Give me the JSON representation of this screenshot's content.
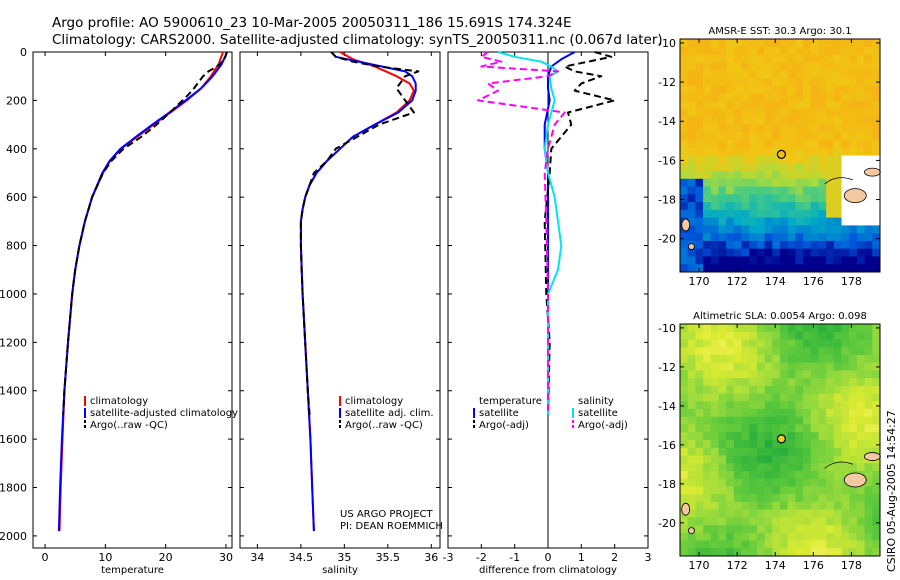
{
  "header": {
    "line1": "Argo profile: AO 5900610_23 10-Mar-2005 20050311_186 15.691S 174.324E",
    "line2": "Climatology: CARS2000. Satellite-adjusted climatology: synTS_20050311.nc (0.067d later)"
  },
  "side_stamp": "CSIRO 05-Aug-2005 14:54:27",
  "colors": {
    "climatology": "#ff0000",
    "satellite": "#0000ff",
    "argo": "#000000",
    "salinity_satellite": "#00e5ee",
    "salinity_argo": "#ff00ff",
    "land": "#f4c8a0"
  },
  "chart_data": [
    {
      "type": "line",
      "xlabel": "temperature",
      "ylabel": "",
      "xlim": [
        -2,
        31
      ],
      "ylim": [
        2050,
        0
      ],
      "xticks": [
        0,
        10,
        20,
        30
      ],
      "yticks": [
        0,
        200,
        400,
        600,
        800,
        1000,
        1200,
        1400,
        1600,
        1800,
        2000
      ],
      "legend": [
        "climatology",
        "satellite-adjusted climatology",
        "Argo(..raw -QC)"
      ],
      "series": [
        {
          "name": "climatology",
          "style": "solid",
          "color": "#ff0000",
          "depth": [
            0,
            50,
            100,
            150,
            200,
            250,
            300,
            350,
            400,
            450,
            500,
            600,
            700,
            800,
            900,
            1000,
            1200,
            1400,
            1600,
            1800,
            1980
          ],
          "values": [
            29.5,
            28.8,
            27.5,
            25.9,
            23.5,
            20.8,
            18.0,
            15.3,
            12.6,
            10.8,
            9.6,
            7.8,
            6.6,
            5.7,
            5.0,
            4.5,
            3.8,
            3.2,
            2.9,
            2.6,
            2.4
          ]
        },
        {
          "name": "satellite-adjusted climatology",
          "style": "solid",
          "color": "#0000ff",
          "depth": [
            0,
            50,
            100,
            150,
            200,
            250,
            300,
            350,
            400,
            450,
            500,
            600,
            700,
            800,
            900,
            1000,
            1200,
            1400,
            1600,
            1800,
            1980
          ],
          "values": [
            30.2,
            29.3,
            27.8,
            25.9,
            23.3,
            20.6,
            17.8,
            15.1,
            12.5,
            10.7,
            9.5,
            7.8,
            6.6,
            5.7,
            5.0,
            4.5,
            3.8,
            3.2,
            2.8,
            2.5,
            2.3
          ]
        },
        {
          "name": "Argo(..raw -QC)",
          "style": "dashed",
          "color": "#000000",
          "depth": [
            0,
            20,
            40,
            60,
            80,
            100,
            130,
            160,
            200,
            250,
            300,
            350,
            400,
            450,
            500,
            600,
            700,
            800,
            900,
            1000,
            1200,
            1400,
            1500
          ],
          "values": [
            30.1,
            29.9,
            29.4,
            28.5,
            27.1,
            26.2,
            25.3,
            24.4,
            22.8,
            20.7,
            18.5,
            16.0,
            13.0,
            11.0,
            9.6,
            7.8,
            6.6,
            5.7,
            5.0,
            4.5,
            3.8,
            3.2,
            3.0
          ]
        }
      ]
    },
    {
      "type": "line",
      "xlabel": "salinity",
      "ylabel": "",
      "xlim": [
        33.8,
        36.1
      ],
      "ylim": [
        2050,
        0
      ],
      "xticks": [
        34,
        34.5,
        35,
        35.5,
        36
      ],
      "legend": [
        "climatology",
        "satellite adj. clim.",
        "Argo(..raw -QC)"
      ],
      "annotation": [
        "US ARGO PROJECT",
        "PI: DEAN ROEMMICH"
      ],
      "series": [
        {
          "name": "climatology",
          "style": "solid",
          "color": "#ff0000",
          "depth": [
            0,
            30,
            60,
            100,
            130,
            160,
            200,
            250,
            300,
            350,
            400,
            450,
            500,
            550,
            600,
            650,
            700,
            800,
            900,
            1000,
            1200,
            1400,
            1600,
            1800,
            1980
          ],
          "values": [
            34.95,
            35.1,
            35.35,
            35.6,
            35.75,
            35.8,
            35.75,
            35.6,
            35.35,
            35.1,
            34.95,
            34.8,
            34.68,
            34.6,
            34.55,
            34.52,
            34.5,
            34.5,
            34.51,
            34.52,
            34.55,
            34.58,
            34.61,
            34.63,
            34.65
          ]
        },
        {
          "name": "satellite adj. clim.",
          "style": "solid",
          "color": "#0000ff",
          "depth": [
            0,
            20,
            50,
            80,
            100,
            130,
            160,
            200,
            250,
            300,
            350,
            400,
            450,
            500,
            550,
            600,
            650,
            700,
            800,
            900,
            1000,
            1200,
            1400,
            1600,
            1800,
            1980
          ],
          "values": [
            34.85,
            34.9,
            35.3,
            35.7,
            35.78,
            35.82,
            35.82,
            35.78,
            35.62,
            35.35,
            35.1,
            34.95,
            34.8,
            34.68,
            34.6,
            34.55,
            34.52,
            34.5,
            34.5,
            34.51,
            34.52,
            34.55,
            34.58,
            34.61,
            34.63,
            34.65
          ]
        },
        {
          "name": "Argo(..raw -QC)",
          "style": "dashed",
          "color": "#000000",
          "depth": [
            0,
            20,
            40,
            60,
            80,
            100,
            150,
            200,
            250,
            300,
            350,
            400,
            450,
            500,
            550,
            600,
            650,
            700,
            800,
            900,
            1000,
            1200,
            1400,
            1500
          ],
          "values": [
            34.85,
            34.9,
            35.1,
            35.4,
            35.85,
            35.7,
            35.6,
            35.7,
            35.8,
            35.4,
            35.15,
            34.9,
            34.8,
            34.65,
            34.6,
            34.55,
            34.52,
            34.5,
            34.5,
            34.51,
            34.52,
            34.55,
            34.58,
            34.6
          ]
        }
      ]
    },
    {
      "type": "line",
      "xlabel": "difference from climatology",
      "ylabel": "",
      "xlim": [
        -3,
        3
      ],
      "ylim": [
        2050,
        0
      ],
      "xticks": [
        -3,
        -2,
        -1,
        0,
        1,
        2,
        3
      ],
      "legend_temperature": [
        "temperature",
        "satellite",
        "Argo(-adj)"
      ],
      "legend_salinity": [
        "salinity",
        "satellite",
        "Argo(-adj)"
      ],
      "series": [
        {
          "name": "temperature satellite",
          "style": "solid",
          "color": "#0000ff",
          "depth": [
            0,
            30,
            60,
            100,
            150,
            200,
            300,
            400,
            500,
            700,
            1000,
            1500
          ],
          "values": [
            0.8,
            0.4,
            0.1,
            0.0,
            0.0,
            0.05,
            -0.1,
            -0.1,
            0.0,
            0.0,
            0.0,
            0.0
          ]
        },
        {
          "name": "temperature Argo(-adj)",
          "style": "dashed",
          "color": "#000000",
          "depth": [
            0,
            20,
            40,
            60,
            80,
            100,
            130,
            160,
            200,
            250,
            300,
            400,
            500,
            700,
            1000,
            1200,
            1500
          ],
          "values": [
            1.4,
            1.9,
            1.2,
            0.5,
            0.8,
            1.6,
            1.0,
            0.8,
            2.0,
            0.6,
            0.7,
            0.1,
            0.05,
            -0.1,
            -0.05,
            0.05,
            0.0
          ]
        },
        {
          "name": "salinity satellite",
          "style": "solid",
          "color": "#00e5ee",
          "depth": [
            0,
            20,
            40,
            60,
            80,
            100,
            150,
            200,
            300,
            400,
            500,
            600,
            800,
            900,
            1000,
            1500
          ],
          "values": [
            -1.5,
            -1.0,
            -0.2,
            0.1,
            0.3,
            0.05,
            0.1,
            0.2,
            0.0,
            -0.1,
            0.0,
            0.2,
            0.4,
            0.3,
            0.0,
            0.0
          ]
        },
        {
          "name": "salinity Argo(-adj)",
          "style": "dashed",
          "color": "#ff00ff",
          "depth": [
            0,
            20,
            40,
            60,
            80,
            100,
            130,
            160,
            200,
            250,
            300,
            400,
            500,
            700,
            1000,
            1500
          ],
          "values": [
            -1.8,
            -2.0,
            -1.4,
            -2.0,
            0.3,
            0.0,
            -1.8,
            -1.5,
            -2.1,
            0.5,
            0.2,
            0.0,
            -0.1,
            -0.05,
            0.0,
            0.0
          ]
        }
      ]
    },
    {
      "type": "heatmap",
      "title": "AMSR-E SST: 30.3 Argo: 30.1",
      "xlim": [
        169,
        179.5
      ],
      "ylim": [
        -21.7,
        -9.8
      ],
      "xticks": [
        170,
        172,
        174,
        176,
        178
      ],
      "yticks": [
        -10,
        -12,
        -14,
        -16,
        -18,
        -20
      ],
      "marker": {
        "lon": 174.324,
        "lat": -15.691
      },
      "colorscale": "sst"
    },
    {
      "type": "heatmap",
      "title": "Altimetric SLA: 0.0054 Argo: 0.098",
      "xlim": [
        169,
        179.5
      ],
      "ylim": [
        -21.7,
        -9.8
      ],
      "xticks": [
        170,
        172,
        174,
        176,
        178
      ],
      "yticks": [
        -10,
        -12,
        -14,
        -16,
        -18,
        -20
      ],
      "marker": {
        "lon": 174.324,
        "lat": -15.691
      },
      "colorscale": "sla"
    }
  ]
}
